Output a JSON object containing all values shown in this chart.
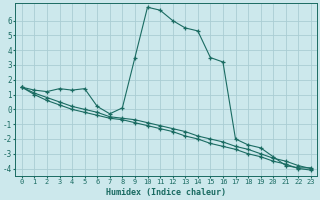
{
  "xlabel": "Humidex (Indice chaleur)",
  "background_color": "#cce8ec",
  "grid_color": "#aacdd4",
  "line_color": "#1a6b62",
  "xlim": [
    -0.5,
    23.5
  ],
  "ylim": [
    -4.5,
    7.2
  ],
  "xticks": [
    0,
    1,
    2,
    3,
    4,
    5,
    6,
    7,
    8,
    9,
    10,
    11,
    12,
    13,
    14,
    15,
    16,
    17,
    18,
    19,
    20,
    21,
    22,
    23
  ],
  "yticks": [
    -4,
    -3,
    -2,
    -1,
    0,
    1,
    2,
    3,
    4,
    5,
    6
  ],
  "line1_x": [
    0,
    1,
    2,
    3,
    4,
    5,
    6,
    7,
    8,
    9,
    10,
    11,
    12,
    13,
    14,
    15,
    16,
    17,
    18,
    19,
    20,
    21,
    22,
    23
  ],
  "line1_y": [
    1.5,
    1.3,
    1.2,
    1.4,
    1.3,
    1.4,
    0.2,
    -0.3,
    0.1,
    3.5,
    6.9,
    6.7,
    6.0,
    5.5,
    5.3,
    3.5,
    3.2,
    -2.0,
    -2.4,
    -2.6,
    -3.2,
    -3.8,
    -3.95,
    -3.95
  ],
  "line2_x": [
    0,
    1,
    2,
    3,
    4,
    5,
    6,
    7,
    8,
    9,
    10,
    11,
    12,
    13,
    14,
    15,
    16,
    17,
    18,
    19,
    20,
    21,
    22,
    23
  ],
  "line2_y": [
    1.5,
    1.1,
    0.8,
    0.5,
    0.2,
    0.0,
    -0.2,
    -0.5,
    -0.6,
    -0.7,
    -0.9,
    -1.1,
    -1.3,
    -1.5,
    -1.8,
    -2.0,
    -2.2,
    -2.5,
    -2.7,
    -3.0,
    -3.3,
    -3.5,
    -3.8,
    -4.0
  ],
  "line3_x": [
    0,
    1,
    2,
    3,
    4,
    5,
    6,
    7,
    8,
    9,
    10,
    11,
    12,
    13,
    14,
    15,
    16,
    17,
    18,
    19,
    20,
    21,
    22,
    23
  ],
  "line3_y": [
    1.5,
    1.0,
    0.6,
    0.3,
    0.0,
    -0.2,
    -0.4,
    -0.6,
    -0.7,
    -0.9,
    -1.1,
    -1.3,
    -1.5,
    -1.8,
    -2.0,
    -2.3,
    -2.5,
    -2.7,
    -3.0,
    -3.2,
    -3.5,
    -3.7,
    -4.0,
    -4.1
  ]
}
